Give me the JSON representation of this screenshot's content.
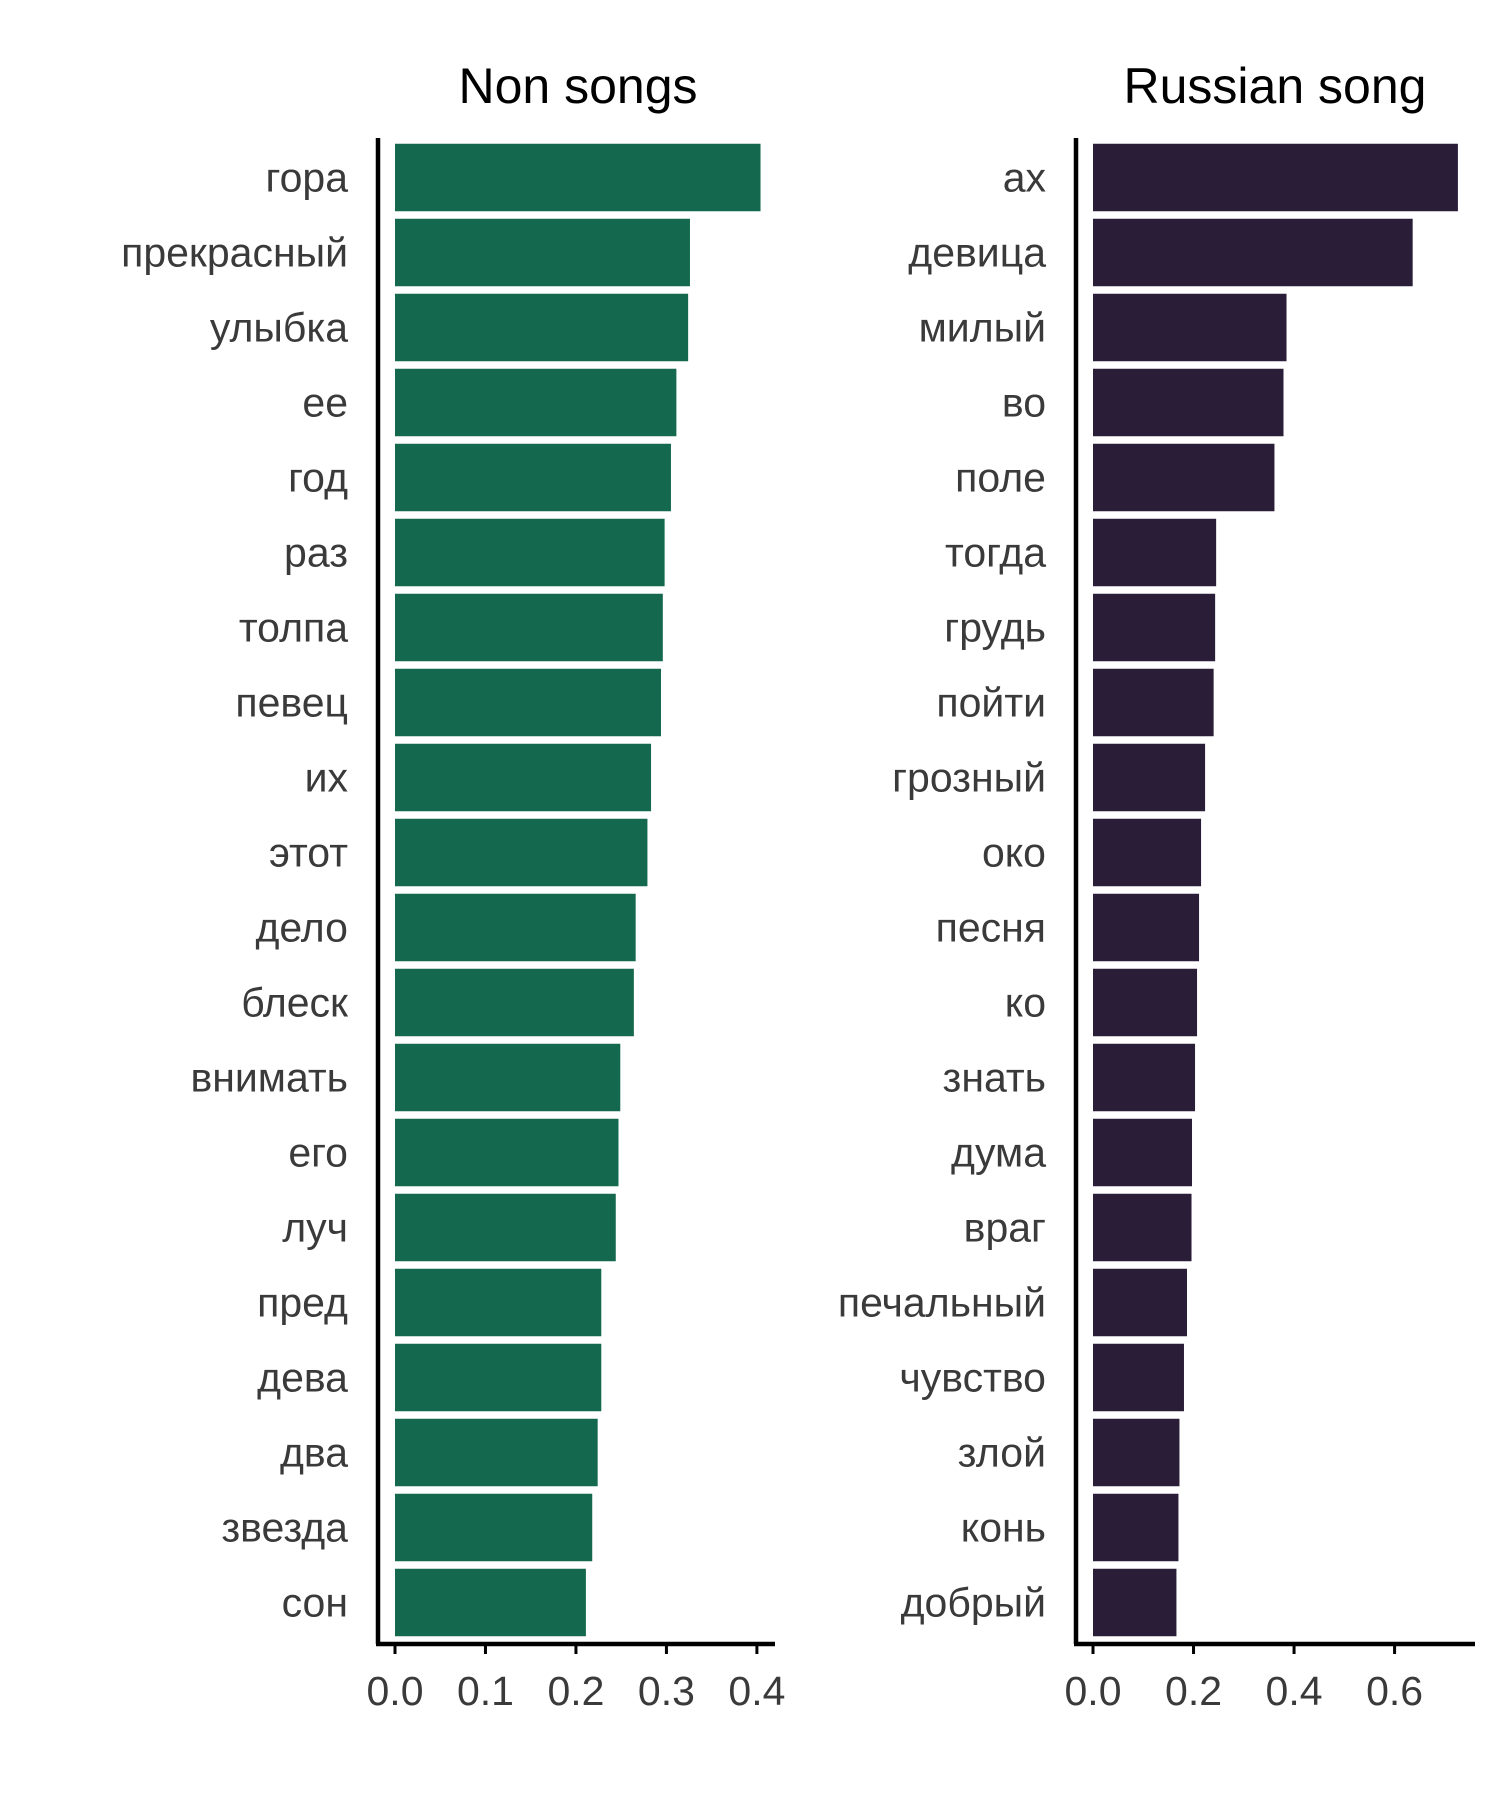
{
  "chart_data": [
    {
      "type": "bar",
      "orientation": "horizontal",
      "title": "Non songs",
      "xlabel": "",
      "ylabel": "",
      "color": "#14684d",
      "xlim": [
        0,
        0.42
      ],
      "xticks": [
        0.0,
        0.1,
        0.2,
        0.3,
        0.4
      ],
      "xtick_labels": [
        "0.0",
        "0.1",
        "0.2",
        "0.3",
        "0.4"
      ],
      "grid": false,
      "categories": [
        "гора",
        "прекрасный",
        "улыбка",
        "ее",
        "год",
        "раз",
        "толпа",
        "певец",
        "их",
        "этот",
        "дело",
        "блеск",
        "внимать",
        "его",
        "луч",
        "пред",
        "дева",
        "два",
        "звезда",
        "сон"
      ],
      "values": [
        0.404,
        0.326,
        0.324,
        0.311,
        0.305,
        0.298,
        0.296,
        0.294,
        0.283,
        0.279,
        0.266,
        0.264,
        0.249,
        0.247,
        0.244,
        0.228,
        0.228,
        0.224,
        0.218,
        0.211
      ]
    },
    {
      "type": "bar",
      "orientation": "horizontal",
      "title": "Russian song",
      "xlabel": "",
      "ylabel": "",
      "color": "#2a1d38",
      "xlim": [
        0,
        0.76
      ],
      "xticks": [
        0.0,
        0.2,
        0.4,
        0.6
      ],
      "xtick_labels": [
        "0.0",
        "0.2",
        "0.4",
        "0.6"
      ],
      "grid": false,
      "categories": [
        "ах",
        "девица",
        "милый",
        "во",
        "поле",
        "тогда",
        "грудь",
        "пойти",
        "грозный",
        "око",
        "песня",
        "ко",
        "знать",
        "дума",
        "враг",
        "печальный",
        "чувство",
        "злой",
        "конь",
        "добрый"
      ],
      "values": [
        0.726,
        0.636,
        0.385,
        0.379,
        0.361,
        0.245,
        0.243,
        0.24,
        0.223,
        0.215,
        0.211,
        0.207,
        0.203,
        0.197,
        0.196,
        0.187,
        0.181,
        0.172,
        0.17,
        0.166
      ]
    }
  ]
}
